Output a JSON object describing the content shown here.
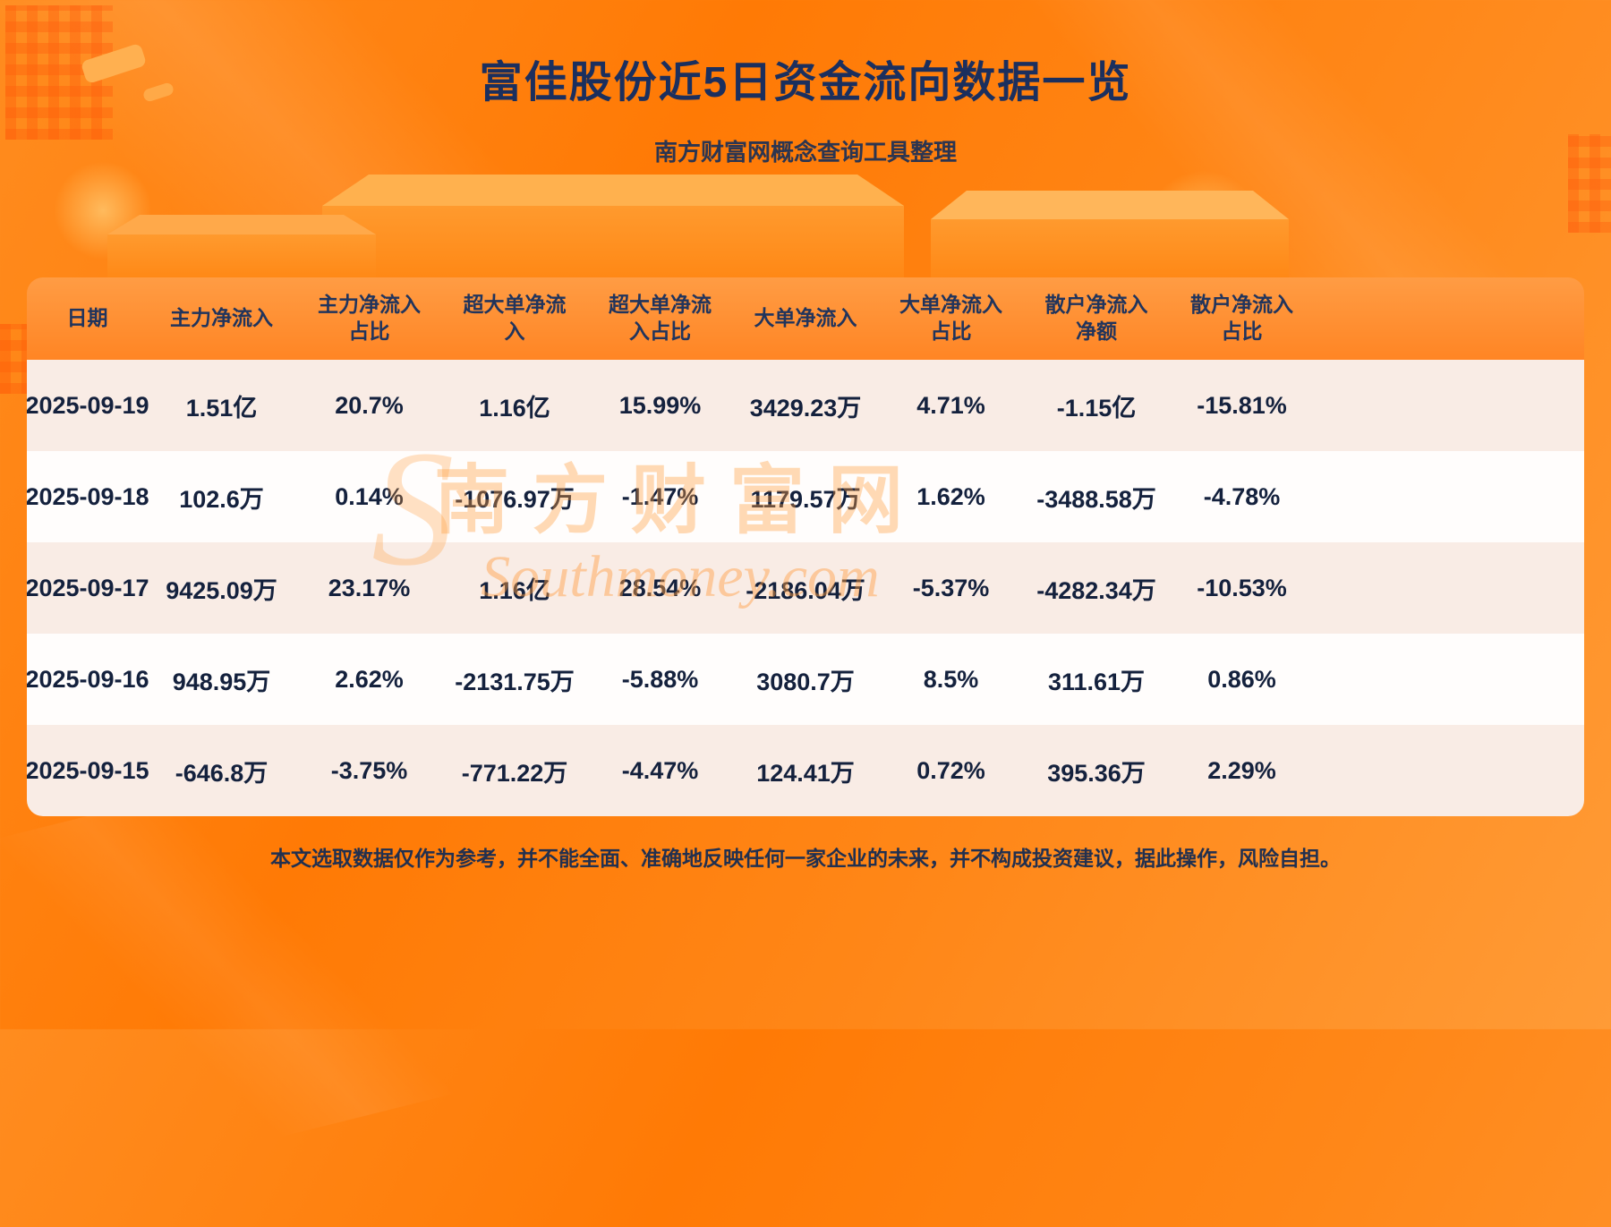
{
  "page": {
    "title": "富佳股份近5日资金流向数据一览",
    "subtitle": "南方财富网概念查询工具整理",
    "disclaimer": "本文选取数据仅作为参考，并不能全面、准确地反映任何一家企业的未来，并不构成投资建议，据此操作，风险自担。",
    "watermark": {
      "s": "S",
      "cn": "南方财富网",
      "en": "Southmoney.com"
    },
    "colors": {
      "background_orange": "#ff8718",
      "title_navy": "#1b2f5e",
      "header_orange": "#ff8c2e",
      "row_pink": "#f9ece5",
      "row_white": "#fffdfc",
      "table_text": "#14213d"
    }
  },
  "chart_data": {
    "type": "table",
    "title": "富佳股份近5日资金流向数据一览",
    "columns": [
      "日期",
      "主力净流入",
      "主力净流入\n占比",
      "超大单净流\n入",
      "超大单净流\n入占比",
      "大单净流入",
      "大单净流入\n占比",
      "散户净流入\n净额",
      "散户净流入\n占比"
    ],
    "rows": [
      [
        "2025-09-19",
        "1.51亿",
        "20.7%",
        "1.16亿",
        "15.99%",
        "3429.23万",
        "4.71%",
        "-1.15亿",
        "-15.81%"
      ],
      [
        "2025-09-18",
        "102.6万",
        "0.14%",
        "-1076.97万",
        "-1.47%",
        "1179.57万",
        "1.62%",
        "-3488.58万",
        "-4.78%"
      ],
      [
        "2025-09-17",
        "9425.09万",
        "23.17%",
        "1.16亿",
        "28.54%",
        "-2186.04万",
        "-5.37%",
        "-4282.34万",
        "-10.53%"
      ],
      [
        "2025-09-16",
        "948.95万",
        "2.62%",
        "-2131.75万",
        "-5.88%",
        "3080.7万",
        "8.5%",
        "311.61万",
        "0.86%"
      ],
      [
        "2025-09-15",
        "-646.8万",
        "-3.75%",
        "-771.22万",
        "-4.47%",
        "124.41万",
        "0.72%",
        "395.36万",
        "2.29%"
      ]
    ]
  }
}
